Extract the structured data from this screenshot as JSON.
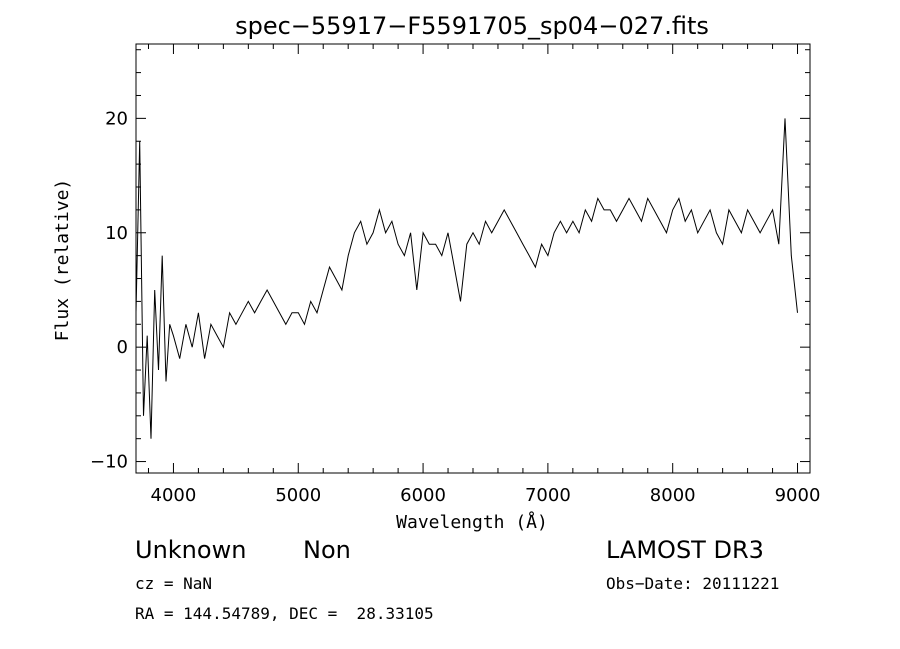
{
  "chart_data": {
    "type": "line",
    "title": "spec−55917−F5591705_sp04−027.fits",
    "xlabel": "Wavelength (Å)",
    "ylabel": "Flux (relative)",
    "xlim": [
      3700,
      9100
    ],
    "ylim": [
      -11,
      26.5
    ],
    "xticks": [
      4000,
      5000,
      6000,
      7000,
      8000,
      9000
    ],
    "yticks": [
      -10,
      0,
      10,
      20
    ],
    "series": [
      {
        "x": [
          3700,
          3730,
          3760,
          3790,
          3820,
          3850,
          3880,
          3910,
          3940,
          3970,
          4000,
          4050,
          4100,
          4150,
          4200,
          4250,
          4300,
          4350,
          4400,
          4450,
          4500,
          4550,
          4600,
          4650,
          4700,
          4750,
          4800,
          4850,
          4900,
          4950,
          5000,
          5050,
          5100,
          5150,
          5200,
          5250,
          5300,
          5350,
          5400,
          5450,
          5500,
          5550,
          5600,
          5650,
          5700,
          5750,
          5800,
          5850,
          5900,
          5950,
          6000,
          6050,
          6100,
          6150,
          6200,
          6250,
          6300,
          6350,
          6400,
          6450,
          6500,
          6550,
          6600,
          6650,
          6700,
          6750,
          6800,
          6850,
          6900,
          6950,
          7000,
          7050,
          7100,
          7150,
          7200,
          7250,
          7300,
          7350,
          7400,
          7450,
          7500,
          7550,
          7600,
          7650,
          7700,
          7750,
          7800,
          7850,
          7900,
          7950,
          8000,
          8050,
          8100,
          8150,
          8200,
          8250,
          8300,
          8350,
          8400,
          8450,
          8500,
          8550,
          8600,
          8650,
          8700,
          8750,
          8800,
          8850,
          8900,
          8950,
          9000
        ],
        "values": [
          3,
          18,
          -6,
          1,
          -8,
          5,
          -2,
          8,
          -3,
          2,
          1,
          -1,
          2,
          0,
          3,
          -1,
          2,
          1,
          0,
          3,
          2,
          3,
          4,
          3,
          4,
          5,
          4,
          3,
          2,
          3,
          3,
          2,
          4,
          3,
          5,
          7,
          6,
          5,
          8,
          10,
          11,
          9,
          10,
          12,
          10,
          11,
          9,
          8,
          10,
          5,
          10,
          9,
          9,
          8,
          10,
          7,
          4,
          9,
          10,
          9,
          11,
          10,
          11,
          12,
          11,
          10,
          9,
          8,
          7,
          9,
          8,
          10,
          11,
          10,
          11,
          10,
          12,
          11,
          13,
          12,
          12,
          11,
          12,
          13,
          12,
          11,
          13,
          12,
          11,
          10,
          12,
          13,
          11,
          12,
          10,
          11,
          12,
          10,
          9,
          12,
          11,
          10,
          12,
          11,
          10,
          11,
          12,
          9,
          20,
          8,
          3
        ]
      }
    ]
  },
  "info": {
    "object_type": "Unknown",
    "object_class": "Non",
    "cz": "cz = NaN",
    "radec": "RA = 144.54789, DEC =  28.33105",
    "survey": "LAMOST DR3",
    "obs_date": "Obs−Date: 20111221"
  }
}
